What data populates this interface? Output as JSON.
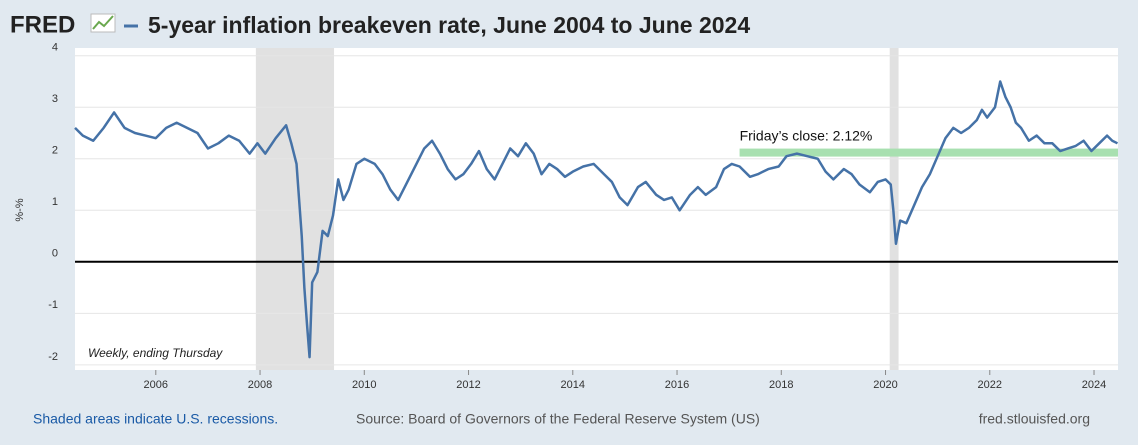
{
  "chart_data": {
    "type": "line",
    "logo": "FRED",
    "title": "5-year inflation breakeven rate, June 2004 to June 2024",
    "ylabel": "%-%",
    "note": "Weekly, ending Thursday",
    "recession_note": "Shaded areas indicate U.S. recessions.",
    "source": "Source: Board of Governors of the Federal Reserve System (US)",
    "url": "fred.stlouisfed.org",
    "color": "#4572a7",
    "recessions": [
      [
        2007.92,
        2009.42
      ],
      [
        2020.08,
        2020.25
      ]
    ],
    "annotation": {
      "text": "Friday’s close: 2.12%",
      "value": 2.12,
      "x": 2017.2,
      "color": "#a8e0b0"
    },
    "xlim": [
      2004.45,
      2024.46
    ],
    "ylim": [
      -2.1,
      4.15
    ],
    "xticks": [
      2006,
      2008,
      2010,
      2012,
      2014,
      2016,
      2018,
      2020,
      2022,
      2024
    ],
    "yticks": [
      -2,
      -1,
      0,
      1,
      2,
      3,
      4
    ],
    "grid": true,
    "x": [
      2004.45,
      2004.6,
      2004.8,
      2005.0,
      2005.2,
      2005.4,
      2005.6,
      2005.8,
      2006.0,
      2006.2,
      2006.4,
      2006.6,
      2006.8,
      2007.0,
      2007.2,
      2007.4,
      2007.6,
      2007.8,
      2007.95,
      2008.1,
      2008.3,
      2008.5,
      2008.6,
      2008.7,
      2008.8,
      2008.85,
      2008.9,
      2008.95,
      2009.0,
      2009.1,
      2009.2,
      2009.3,
      2009.4,
      2009.5,
      2009.6,
      2009.7,
      2009.85,
      2010.0,
      2010.2,
      2010.35,
      2010.5,
      2010.65,
      2010.8,
      2011.0,
      2011.15,
      2011.3,
      2011.45,
      2011.6,
      2011.75,
      2011.9,
      2012.05,
      2012.2,
      2012.35,
      2012.5,
      2012.65,
      2012.8,
      2012.95,
      2013.1,
      2013.25,
      2013.4,
      2013.55,
      2013.7,
      2013.85,
      2014.0,
      2014.2,
      2014.4,
      2014.6,
      2014.75,
      2014.9,
      2015.05,
      2015.25,
      2015.4,
      2015.6,
      2015.75,
      2015.9,
      2016.05,
      2016.25,
      2016.4,
      2016.55,
      2016.75,
      2016.9,
      2017.05,
      2017.2,
      2017.4,
      2017.55,
      2017.75,
      2017.95,
      2018.1,
      2018.3,
      2018.5,
      2018.7,
      2018.85,
      2019.0,
      2019.2,
      2019.35,
      2019.5,
      2019.7,
      2019.85,
      2020.0,
      2020.1,
      2020.15,
      2020.2,
      2020.28,
      2020.4,
      2020.55,
      2020.7,
      2020.85,
      2021.0,
      2021.15,
      2021.3,
      2021.45,
      2021.6,
      2021.75,
      2021.85,
      2021.95,
      2022.1,
      2022.2,
      2022.3,
      2022.4,
      2022.5,
      2022.6,
      2022.75,
      2022.9,
      2023.05,
      2023.2,
      2023.35,
      2023.5,
      2023.65,
      2023.8,
      2023.95,
      2024.1,
      2024.25,
      2024.35,
      2024.45
    ],
    "values": [
      2.6,
      2.45,
      2.35,
      2.6,
      2.9,
      2.6,
      2.5,
      2.45,
      2.4,
      2.6,
      2.7,
      2.6,
      2.5,
      2.2,
      2.3,
      2.45,
      2.35,
      2.1,
      2.3,
      2.1,
      2.4,
      2.65,
      2.3,
      1.9,
      0.5,
      -0.5,
      -1.2,
      -1.85,
      -0.4,
      -0.2,
      0.6,
      0.5,
      0.9,
      1.6,
      1.2,
      1.4,
      1.9,
      2.0,
      1.9,
      1.7,
      1.4,
      1.2,
      1.5,
      1.9,
      2.2,
      2.35,
      2.1,
      1.8,
      1.6,
      1.7,
      1.9,
      2.15,
      1.8,
      1.6,
      1.9,
      2.2,
      2.05,
      2.3,
      2.1,
      1.7,
      1.9,
      1.8,
      1.65,
      1.75,
      1.85,
      1.9,
      1.7,
      1.55,
      1.25,
      1.1,
      1.45,
      1.55,
      1.3,
      1.2,
      1.25,
      1.0,
      1.3,
      1.45,
      1.3,
      1.45,
      1.8,
      1.9,
      1.85,
      1.65,
      1.7,
      1.8,
      1.85,
      2.05,
      2.1,
      2.05,
      2.0,
      1.75,
      1.6,
      1.8,
      1.7,
      1.5,
      1.35,
      1.55,
      1.6,
      1.5,
      1.0,
      0.35,
      0.8,
      0.75,
      1.1,
      1.45,
      1.7,
      2.05,
      2.4,
      2.6,
      2.5,
      2.6,
      2.75,
      2.95,
      2.8,
      3.0,
      3.5,
      3.2,
      3.0,
      2.7,
      2.6,
      2.35,
      2.45,
      2.3,
      2.3,
      2.15,
      2.2,
      2.25,
      2.35,
      2.15,
      2.3,
      2.45,
      2.35,
      2.3
    ]
  }
}
